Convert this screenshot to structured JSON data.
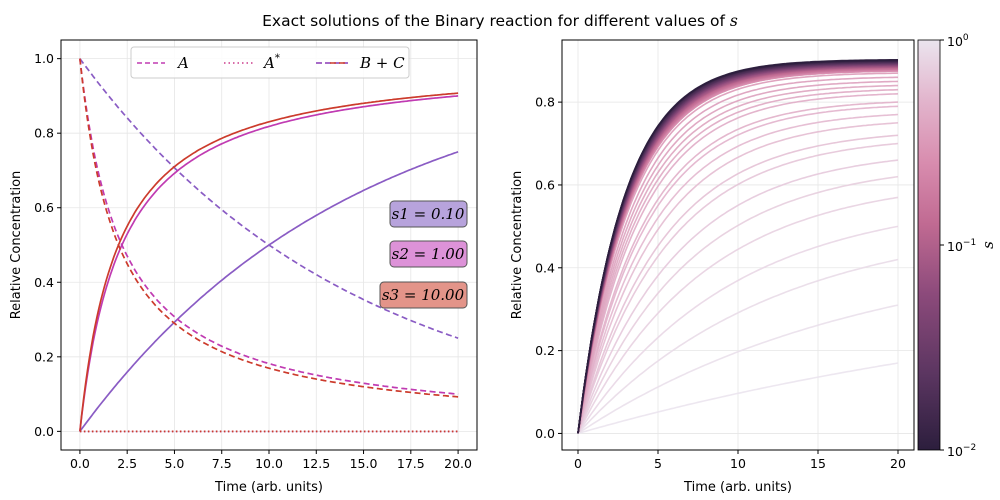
{
  "title_prefix": "Exact solutions of the Binary reaction for different values of",
  "title_var": "s",
  "chart_data": [
    {
      "type": "line",
      "xlabel": "Time (arb. units)",
      "ylabel": "Relative Concentration",
      "xlim": [
        -1.0,
        21.0
      ],
      "ylim": [
        -0.05,
        1.05
      ],
      "xticks": [
        "0.0",
        "2.5",
        "5.0",
        "7.5",
        "10.0",
        "12.5",
        "15.0",
        "17.5",
        "20.0"
      ],
      "yticks": [
        "0.0",
        "0.2",
        "0.4",
        "0.6",
        "0.8",
        "1.0"
      ],
      "grid": true,
      "legend": {
        "placement": "top-center",
        "entries": [
          {
            "label": "A",
            "style": "dashed"
          },
          {
            "label": "A*",
            "style": "dotted"
          },
          {
            "label": "B + C",
            "style": "solid"
          }
        ]
      },
      "s_values": [
        {
          "label": "s1 = 0.10",
          "value": 0.1,
          "color": "#8a5cc4",
          "box": "#b7a3dc"
        },
        {
          "label": "s2 = 1.00",
          "value": 1.0,
          "color": "#c03bb2",
          "box": "#dd92d8"
        },
        {
          "label": "s3 = 10.00",
          "value": 10.0,
          "color": "#cc3b2c",
          "box": "#e39489"
        }
      ],
      "series": [
        {
          "s": 0.1,
          "A": [
            1.0,
            0.93,
            0.87,
            0.81,
            0.76,
            0.71,
            0.66,
            0.61,
            0.57,
            0.53,
            0.5,
            0.47,
            0.44,
            0.42,
            0.39,
            0.37,
            0.35,
            0.33,
            0.31,
            0.29,
            0.25
          ],
          "BC": [
            0.0,
            0.07,
            0.13,
            0.19,
            0.24,
            0.29,
            0.34,
            0.39,
            0.43,
            0.47,
            0.5,
            0.53,
            0.56,
            0.58,
            0.61,
            0.63,
            0.65,
            0.67,
            0.69,
            0.71,
            0.75
          ],
          "Astar": 0.0
        },
        {
          "s": 1.0,
          "A": [
            1.0,
            0.64,
            0.48,
            0.39,
            0.32,
            0.28,
            0.24,
            0.22,
            0.19,
            0.18,
            0.16,
            0.15,
            0.14,
            0.13,
            0.125,
            0.118,
            0.111,
            0.105,
            0.1,
            0.095,
            0.1
          ],
          "BC": [
            0.0,
            0.36,
            0.52,
            0.61,
            0.68,
            0.72,
            0.76,
            0.78,
            0.81,
            0.82,
            0.84,
            0.85,
            0.86,
            0.87,
            0.875,
            0.882,
            0.889,
            0.895,
            0.9,
            0.905,
            0.9
          ],
          "Astar": 0.0
        },
        {
          "s": 10.0,
          "A": [
            1.0,
            0.58,
            0.42,
            0.33,
            0.27,
            0.23,
            0.2,
            0.18,
            0.16,
            0.15,
            0.14,
            0.13,
            0.12,
            0.11,
            0.105,
            0.1,
            0.097,
            0.095,
            0.094,
            0.093,
            0.092
          ],
          "BC": [
            0.0,
            0.42,
            0.58,
            0.67,
            0.73,
            0.77,
            0.8,
            0.82,
            0.84,
            0.85,
            0.86,
            0.87,
            0.88,
            0.89,
            0.895,
            0.9,
            0.903,
            0.905,
            0.906,
            0.907,
            0.908
          ],
          "Astar": 0.0
        }
      ]
    },
    {
      "type": "line",
      "xlabel": "Time (arb. units)",
      "ylabel": "Relative Concentration",
      "xlim": [
        -1.0,
        21.0
      ],
      "ylim": [
        -0.04,
        0.95
      ],
      "xticks": [
        "0",
        "5",
        "10",
        "15",
        "20"
      ],
      "yticks": [
        "0.0",
        "0.2",
        "0.4",
        "0.6",
        "0.8"
      ],
      "grid": true,
      "series_description": "family of B + C curves, one per s between 10^-2 and 10^0, colored by s",
      "endpoints": [
        0.17,
        0.31,
        0.42,
        0.5,
        0.57,
        0.62,
        0.66,
        0.7,
        0.72,
        0.75,
        0.77,
        0.79,
        0.8,
        0.82,
        0.83,
        0.84,
        0.85,
        0.86,
        0.87,
        0.875,
        0.88,
        0.885,
        0.89,
        0.893,
        0.896,
        0.9
      ],
      "colorbar": {
        "label": "s",
        "scale": "log",
        "range": [
          0.01,
          1.0
        ],
        "ticks": [
          "10^-2",
          "10^-1",
          "10^0"
        ],
        "colormap": [
          "#2c1e3d",
          "#5a3560",
          "#8c4a7b",
          "#c06a92",
          "#d88cae",
          "#e2b4cc",
          "#ebe4ee"
        ]
      }
    }
  ]
}
